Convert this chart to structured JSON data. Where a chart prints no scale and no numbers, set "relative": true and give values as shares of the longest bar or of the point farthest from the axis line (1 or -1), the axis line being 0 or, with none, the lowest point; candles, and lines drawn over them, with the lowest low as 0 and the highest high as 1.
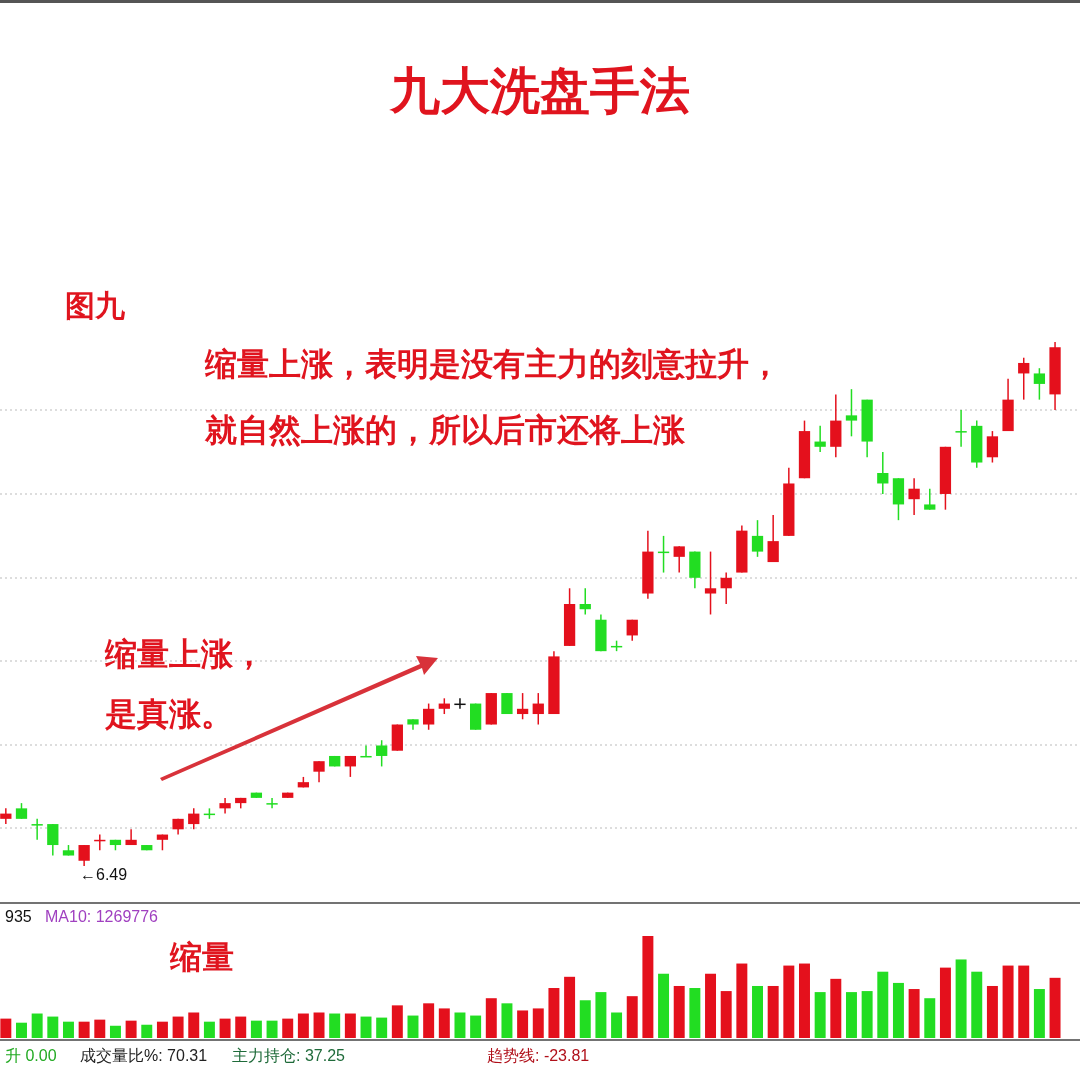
{
  "chart_data": [
    {
      "type": "candlestick",
      "title": "九大洗盘手法",
      "relative": true,
      "grid": true,
      "annotations": [
        "图九",
        "缩量上涨，表明是没有主力的刻意拉升，",
        "就自然上涨的，所以后市还将上涨",
        "缩量上涨，",
        "是真涨。",
        "←6.49"
      ],
      "categories": [
        null,
        null,
        null,
        null,
        null,
        null,
        null,
        null,
        null,
        null,
        null,
        null,
        null,
        null,
        null,
        null,
        null,
        null,
        null,
        null,
        null,
        null,
        null,
        null,
        null,
        null,
        null,
        null,
        null,
        null,
        null,
        null,
        null,
        null,
        null,
        null,
        null,
        null,
        null,
        null,
        null,
        null,
        null,
        null,
        null,
        null,
        null,
        null,
        null,
        null,
        null,
        null,
        null,
        null,
        null,
        null,
        null,
        null,
        null,
        null,
        null,
        null,
        null,
        null,
        null,
        null,
        null,
        null
      ],
      "ohlc": [
        [
          0.09,
          0.11,
          0.08,
          0.1
        ],
        [
          0.11,
          0.12,
          0.09,
          0.09
        ],
        [
          0.08,
          0.09,
          0.05,
          0.08
        ],
        [
          0.08,
          0.08,
          0.02,
          0.04
        ],
        [
          0.03,
          0.04,
          0.02,
          0.02
        ],
        [
          0.01,
          0.04,
          0,
          0.04
        ],
        [
          0.05,
          0.06,
          0.03,
          0.05
        ],
        [
          0.05,
          0.05,
          0.03,
          0.04
        ],
        [
          0.04,
          0.07,
          0.04,
          0.05
        ],
        [
          0.04,
          0.04,
          0.03,
          0.03
        ],
        [
          0.05,
          0.06,
          0.03,
          0.06
        ],
        [
          0.07,
          0.09,
          0.06,
          0.09
        ],
        [
          0.08,
          0.11,
          0.07,
          0.1
        ],
        [
          0.1,
          0.11,
          0.09,
          0.1
        ],
        [
          0.11,
          0.13,
          0.1,
          0.12
        ],
        [
          0.12,
          0.13,
          0.11,
          0.13
        ],
        [
          0.14,
          0.14,
          0.13,
          0.13
        ],
        [
          0.12,
          0.13,
          0.11,
          0.12
        ],
        [
          0.13,
          0.14,
          0.13,
          0.14
        ],
        [
          0.15,
          0.17,
          0.15,
          0.16
        ],
        [
          0.18,
          0.2,
          0.16,
          0.2
        ],
        [
          0.21,
          0.21,
          0.19,
          0.19
        ],
        [
          0.19,
          0.21,
          0.17,
          0.21
        ],
        [
          0.21,
          0.23,
          0.21,
          0.21
        ],
        [
          0.23,
          0.24,
          0.19,
          0.21
        ],
        [
          0.22,
          0.27,
          0.22,
          0.27
        ],
        [
          0.28,
          0.28,
          0.26,
          0.27
        ],
        [
          0.27,
          0.31,
          0.26,
          0.3
        ],
        [
          0.3,
          0.32,
          0.29,
          0.31
        ],
        [
          0.31,
          0.32,
          0.3,
          0.31
        ],
        [
          0.31,
          0.31,
          0.26,
          0.26
        ],
        [
          0.27,
          0.33,
          0.27,
          0.33
        ],
        [
          0.33,
          0.33,
          0.29,
          0.29
        ],
        [
          0.29,
          0.33,
          0.28,
          0.3
        ],
        [
          0.29,
          0.33,
          0.27,
          0.31
        ],
        [
          0.29,
          0.41,
          0.29,
          0.4
        ],
        [
          0.42,
          0.53,
          0.42,
          0.5
        ],
        [
          0.5,
          0.53,
          0.48,
          0.49
        ],
        [
          0.47,
          0.48,
          0.41,
          0.41
        ],
        [
          0.42,
          0.43,
          0.41,
          0.42
        ],
        [
          0.44,
          0.47,
          0.43,
          0.47
        ],
        [
          0.52,
          0.64,
          0.51,
          0.6
        ],
        [
          0.6,
          0.63,
          0.56,
          0.6
        ],
        [
          0.59,
          0.61,
          0.56,
          0.61
        ],
        [
          0.6,
          0.6,
          0.53,
          0.55
        ],
        [
          0.52,
          0.6,
          0.48,
          0.53
        ],
        [
          0.53,
          0.56,
          0.5,
          0.55
        ],
        [
          0.56,
          0.65,
          0.56,
          0.64
        ],
        [
          0.63,
          0.66,
          0.59,
          0.6
        ],
        [
          0.58,
          0.67,
          0.58,
          0.62
        ],
        [
          0.63,
          0.76,
          0.63,
          0.73
        ],
        [
          0.74,
          0.85,
          0.74,
          0.83
        ],
        [
          0.81,
          0.84,
          0.79,
          0.8
        ],
        [
          0.8,
          0.9,
          0.78,
          0.85
        ],
        [
          0.86,
          0.91,
          0.82,
          0.85
        ],
        [
          0.89,
          0.89,
          0.78,
          0.81
        ],
        [
          0.75,
          0.79,
          0.71,
          0.73
        ],
        [
          0.74,
          0.74,
          0.66,
          0.69
        ],
        [
          0.7,
          0.74,
          0.67,
          0.72
        ],
        [
          0.69,
          0.72,
          0.68,
          0.68
        ],
        [
          0.71,
          0.8,
          0.68,
          0.8
        ],
        [
          0.83,
          0.87,
          0.8,
          0.83
        ],
        [
          0.84,
          0.85,
          0.76,
          0.77
        ],
        [
          0.78,
          0.83,
          0.77,
          0.82
        ],
        [
          0.83,
          0.93,
          0.83,
          0.89
        ],
        [
          0.94,
          0.97,
          0.89,
          0.96
        ],
        [
          0.94,
          0.95,
          0.89,
          0.92
        ],
        [
          0.9,
          1,
          0.87,
          0.99
        ]
      ],
      "colors": [
        "#e4101c",
        "#22dd22",
        "#22dd22",
        "#22dd22",
        "#22dd22",
        "#e4101c",
        "#e4101c",
        "#22dd22",
        "#e4101c",
        "#22dd22",
        "#e4101c",
        "#e4101c",
        "#e4101c",
        "#22dd22",
        "#e4101c",
        "#e4101c",
        "#22dd22",
        "#22dd22",
        "#e4101c",
        "#e4101c",
        "#e4101c",
        "#22dd22",
        "#e4101c",
        "#22dd22",
        "#22dd22",
        "#e4101c",
        "#22dd22",
        "#e4101c",
        "#e4101c",
        "#111111",
        "#22dd22",
        "#e4101c",
        "#22dd22",
        "#e4101c",
        "#e4101c",
        "#e4101c",
        "#e4101c",
        "#22dd22",
        "#22dd22",
        "#22dd22",
        "#e4101c",
        "#e4101c",
        "#22dd22",
        "#e4101c",
        "#22dd22",
        "#e4101c",
        "#e4101c",
        "#e4101c",
        "#22dd22",
        "#e4101c",
        "#e4101c",
        "#e4101c",
        "#22dd22",
        "#e4101c",
        "#22dd22",
        "#22dd22",
        "#22dd22",
        "#22dd22",
        "#e4101c",
        "#22dd22",
        "#e4101c",
        "#22dd22",
        "#22dd22",
        "#e4101c",
        "#e4101c",
        "#e4101c",
        "#22dd22",
        "#e4101c"
      ]
    },
    {
      "type": "bar",
      "relative": true,
      "annotations": [
        "935",
        "MA10: 1269776",
        "缩量",
        "升 0.00",
        "成交量比%: 70.31",
        "主力持仓: 37.25",
        "趋势线: -23.81"
      ],
      "categories": [
        null,
        null,
        null,
        null,
        null,
        null,
        null,
        null,
        null,
        null,
        null,
        null,
        null,
        null,
        null,
        null,
        null,
        null,
        null,
        null,
        null,
        null,
        null,
        null,
        null,
        null,
        null,
        null,
        null,
        null,
        null,
        null,
        null,
        null,
        null,
        null,
        null,
        null,
        null,
        null,
        null,
        null,
        null,
        null,
        null,
        null,
        null,
        null,
        null,
        null,
        null,
        null,
        null,
        null,
        null,
        null,
        null,
        null,
        null,
        null,
        null,
        null,
        null,
        null,
        null,
        null,
        null,
        null
      ],
      "values": [
        0.19,
        0.15,
        0.24,
        0.21,
        0.16,
        0.16,
        0.18,
        0.12,
        0.17,
        0.13,
        0.16,
        0.21,
        0.25,
        0.16,
        0.19,
        0.21,
        0.17,
        0.17,
        0.19,
        0.24,
        0.25,
        0.24,
        0.24,
        0.21,
        0.2,
        0.32,
        0.22,
        0.34,
        0.29,
        0.25,
        0.22,
        0.39,
        0.34,
        0.27,
        0.29,
        0.49,
        0.6,
        0.37,
        0.45,
        0.25,
        0.41,
        1,
        0.63,
        0.51,
        0.49,
        0.63,
        0.46,
        0.73,
        0.51,
        0.51,
        0.71,
        0.73,
        0.45,
        0.58,
        0.45,
        0.46,
        0.65,
        0.54,
        0.48,
        0.39,
        0.69,
        0.77,
        0.65,
        0.51,
        0.71,
        0.71,
        0.48,
        0.59
      ],
      "colors": [
        "#e4101c",
        "#22dd22",
        "#22dd22",
        "#22dd22",
        "#22dd22",
        "#e4101c",
        "#e4101c",
        "#22dd22",
        "#e4101c",
        "#22dd22",
        "#e4101c",
        "#e4101c",
        "#e4101c",
        "#22dd22",
        "#e4101c",
        "#e4101c",
        "#22dd22",
        "#22dd22",
        "#e4101c",
        "#e4101c",
        "#e4101c",
        "#22dd22",
        "#e4101c",
        "#22dd22",
        "#22dd22",
        "#e4101c",
        "#22dd22",
        "#e4101c",
        "#e4101c",
        "#22dd22",
        "#22dd22",
        "#e4101c",
        "#22dd22",
        "#e4101c",
        "#e4101c",
        "#e4101c",
        "#e4101c",
        "#22dd22",
        "#22dd22",
        "#22dd22",
        "#e4101c",
        "#e4101c",
        "#22dd22",
        "#e4101c",
        "#22dd22",
        "#e4101c",
        "#e4101c",
        "#e4101c",
        "#22dd22",
        "#e4101c",
        "#e4101c",
        "#e4101c",
        "#22dd22",
        "#e4101c",
        "#22dd22",
        "#22dd22",
        "#22dd22",
        "#22dd22",
        "#e4101c",
        "#22dd22",
        "#e4101c",
        "#22dd22",
        "#22dd22",
        "#e4101c",
        "#e4101c",
        "#e4101c",
        "#22dd22",
        "#e4101c"
      ]
    }
  ]
}
